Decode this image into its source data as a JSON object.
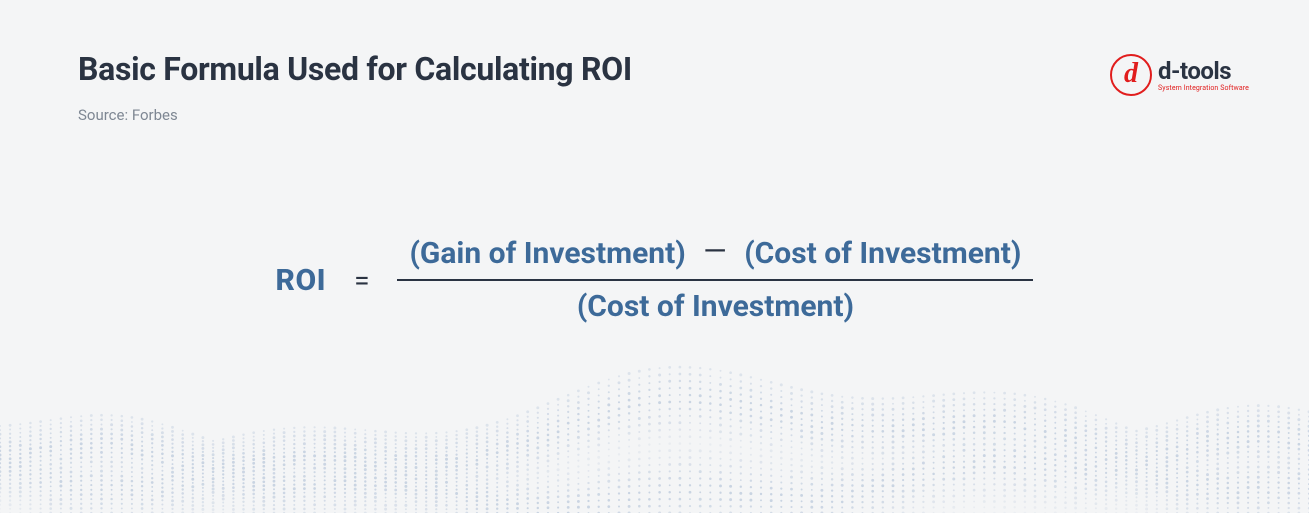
{
  "header": {
    "title": "Basic Formula Used for Calculating ROI",
    "source": "Source:  Forbes"
  },
  "logo": {
    "letter": "d",
    "name": "d-tools",
    "tagline": "System Integration Software",
    "ring_color": "#e11d1d",
    "text_color": "#2a3342"
  },
  "formula": {
    "type": "equation",
    "lhs": "ROI",
    "equals": "=",
    "numerator_left": "(Gain of Investment)",
    "minus": "—",
    "numerator_right": "(Cost of Investment)",
    "denominator": "(Cost of Investment)",
    "term_color": "#3d6a99",
    "operator_color": "#2a3342",
    "term_fontsize": 30,
    "term_fontweight": 700,
    "fraction_line_color": "#2a3342",
    "fraction_line_width": 2
  },
  "styling": {
    "background_color": "#f4f5f6",
    "title_color": "#2a3342",
    "title_fontsize": 32,
    "title_fontweight": 700,
    "source_color": "#7e8793",
    "source_fontsize": 15,
    "wave_dot_color": "#b7c6da",
    "wave_dot_opacity": 0.55
  }
}
